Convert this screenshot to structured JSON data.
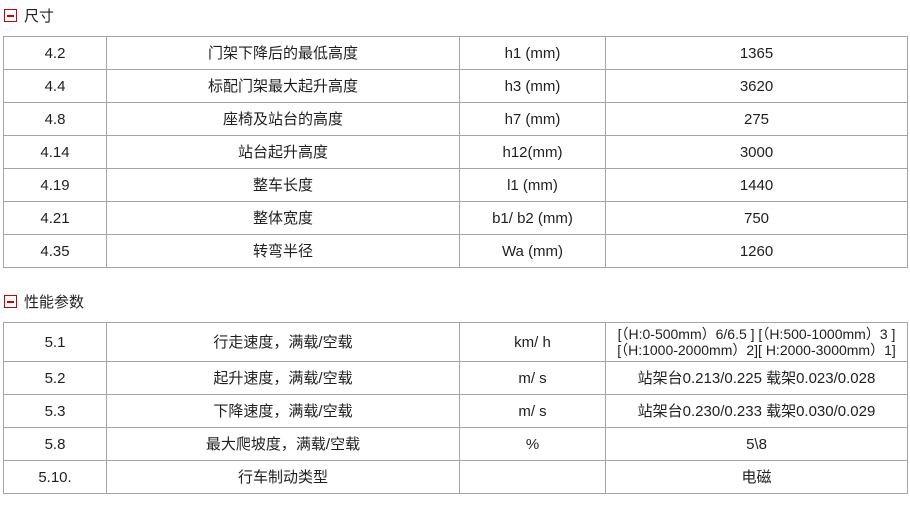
{
  "colors": {
    "accent_red": "#cc0000",
    "table_border": "#a5a5a5",
    "text": "#222222",
    "background": "#ffffff"
  },
  "sections": [
    {
      "title": "尺寸",
      "collapse_icon": "minus-box-icon",
      "expanded": true,
      "rows": [
        {
          "no": "4.2",
          "label": "门架下降后的最低高度",
          "symbol": "h1 (mm)",
          "value": "1365"
        },
        {
          "no": "4.4",
          "label": "标配门架最大起升高度",
          "symbol": "h3 (mm)",
          "value": "3620"
        },
        {
          "no": "4.8",
          "label": "座椅及站台的高度",
          "symbol": "h7 (mm)",
          "value": "275"
        },
        {
          "no": "4.14",
          "label": "站台起升高度",
          "symbol": "h12(mm)",
          "value": "3000"
        },
        {
          "no": "4.19",
          "label": "整车长度",
          "symbol": "l1 (mm)",
          "value": "1440"
        },
        {
          "no": "4.21",
          "label": "整体宽度",
          "symbol": "b1/ b2 (mm)",
          "value": "750"
        },
        {
          "no": "4.35",
          "label": "转弯半径",
          "symbol": "Wa (mm)",
          "value": "1260"
        }
      ]
    },
    {
      "title": "性能参数",
      "collapse_icon": "minus-box-icon",
      "expanded": true,
      "rows": [
        {
          "no": "5.1",
          "label": "行走速度，满载/空载",
          "symbol": "km/ h",
          "value": "[（H:0-500mm）6/6.5 ] [（H:500-1000mm）3 ][（H:1000-2000mm）2][ H:2000-3000mm）1]"
        },
        {
          "no": "5.2",
          "label": "起升速度，满载/空载",
          "symbol": "m/ s",
          "value": "站架台0.213/0.225 载架0.023/0.028"
        },
        {
          "no": "5.3",
          "label": "下降速度，满载/空载",
          "symbol": "m/ s",
          "value": "站架台0.230/0.233 载架0.030/0.029"
        },
        {
          "no": "5.8",
          "label": "最大爬坡度，满载/空载",
          "symbol": "%",
          "value": "5\\8"
        },
        {
          "no": "5.10.",
          "label": "行车制动类型",
          "symbol": "",
          "value": "电磁"
        }
      ]
    }
  ]
}
